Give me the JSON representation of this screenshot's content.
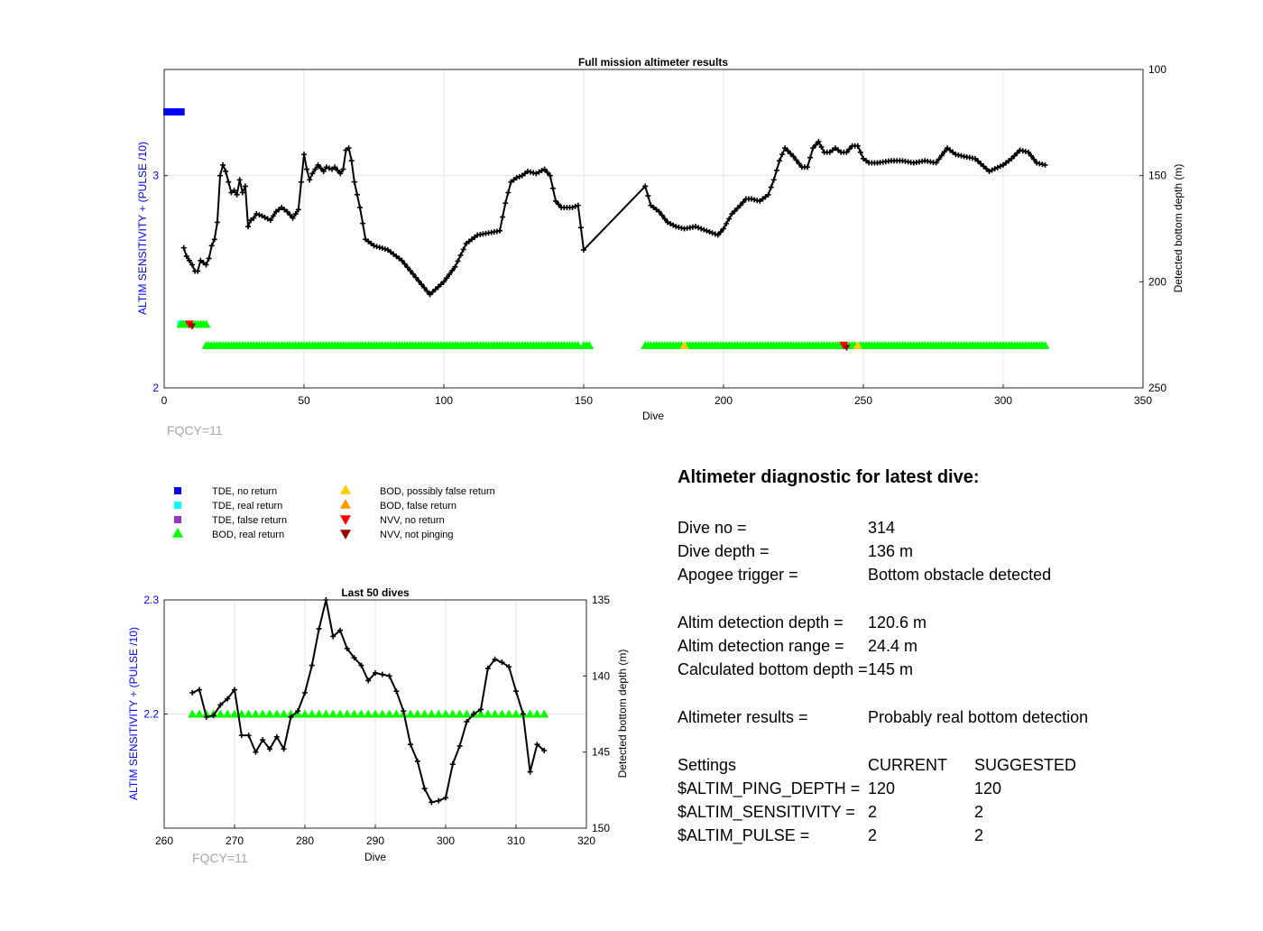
{
  "chart_data": [
    {
      "type": "scatter",
      "title": "Full mission altimeter results",
      "xlabel": "Dive",
      "ylabel_left": "ALTIM SENSITIVITY + (PULSE /10)",
      "ylabel_right": "Detected bottom depth (m)",
      "xlim": [
        0,
        350
      ],
      "ylim_left": [
        2,
        3.5
      ],
      "ylim_right_reversed": [
        100,
        250
      ],
      "x_ticks": [
        0,
        50,
        100,
        150,
        200,
        250,
        300,
        350
      ],
      "x_tick_labels": [
        "0",
        "50",
        "100",
        "150",
        "200",
        "250",
        "300",
        "350"
      ],
      "y_left_ticks": [
        2,
        3
      ],
      "y_left_tick_labels": [
        "2",
        "3"
      ],
      "y_right_ticks": [
        100,
        150,
        200,
        250
      ],
      "y_right_tick_labels": [
        "100",
        "150",
        "200",
        "250"
      ],
      "grid": true,
      "annotation": "FQCY=11",
      "tde_no_return": {
        "x_from": 0,
        "x_to": 7,
        "y_left": 3.3
      },
      "tde_real_return": {
        "x": [
          6,
          7
        ],
        "y_left": 2.3
      },
      "bod_real_return": {
        "y_left_early": 2.3,
        "x_early": [
          6,
          7,
          8,
          9,
          10,
          11,
          12,
          13,
          14,
          15
        ],
        "y_left": 2.2,
        "x_ranges": [
          [
            15,
            148
          ],
          [
            150,
            152
          ],
          [
            172,
            315
          ]
        ]
      },
      "bod_possibly_false_return": {
        "x": [
          186,
          248
        ],
        "y_left": 2.2
      },
      "nvv_no_return": {
        "x": [
          9,
          243
        ],
        "y_left": [
          2.3,
          2.2
        ]
      },
      "nvv_not_pinging": {
        "x": [
          10,
          244
        ],
        "y_left": [
          2.29,
          2.19
        ]
      },
      "bottom_depth_series": {
        "x": [
          7,
          8,
          10,
          11,
          12,
          13,
          14,
          15,
          16,
          17,
          18,
          19,
          20,
          21,
          22,
          23,
          24,
          25,
          26,
          27,
          28,
          29,
          30,
          31,
          32,
          33,
          35,
          38,
          40,
          42,
          44,
          46,
          48,
          50,
          51,
          52,
          53,
          55,
          57,
          58,
          60,
          61,
          63,
          64,
          65,
          66,
          67,
          68,
          70,
          72,
          75,
          80,
          85,
          90,
          95,
          100,
          104,
          108,
          112,
          116,
          120,
          122,
          124,
          126,
          128,
          130,
          133,
          136,
          138,
          140,
          142,
          144,
          146,
          148,
          150,
          172,
          174,
          177,
          180,
          183,
          186,
          190,
          194,
          198,
          200,
          203,
          206,
          208,
          210,
          213,
          216,
          218,
          220,
          222,
          225,
          228,
          230,
          232,
          234,
          236,
          238,
          240,
          242,
          244,
          246,
          248,
          250,
          252,
          255,
          260,
          264,
          268,
          272,
          276,
          280,
          283,
          286,
          290,
          295,
          300,
          303,
          306,
          309,
          312,
          315
        ],
        "depth": [
          184,
          188,
          192,
          195,
          195,
          190,
          191,
          192,
          189,
          183,
          180,
          172,
          150,
          145,
          148,
          153,
          158,
          157,
          159,
          152,
          158,
          155,
          174,
          171,
          170,
          168,
          169,
          171,
          167,
          165,
          167,
          170,
          166,
          140,
          147,
          152,
          149,
          145,
          148,
          146,
          147,
          146,
          149,
          147,
          138,
          137,
          143,
          153,
          165,
          180,
          183,
          185,
          190,
          198,
          206,
          200,
          193,
          182,
          178,
          177,
          176,
          163,
          153,
          151,
          150,
          148,
          149,
          147,
          150,
          162,
          165,
          165,
          165,
          164,
          185,
          155,
          164,
          167,
          172,
          174,
          175,
          174,
          176,
          178,
          175,
          168,
          164,
          161,
          161,
          162,
          159,
          152,
          143,
          137,
          141,
          146,
          146,
          137,
          134,
          139,
          139,
          137,
          139,
          139,
          136,
          136,
          142,
          144,
          144,
          143,
          143,
          144,
          143,
          144,
          137,
          140,
          141,
          142,
          148,
          145,
          142,
          138,
          139,
          144,
          145
        ]
      }
    },
    {
      "type": "scatter",
      "title": "Last 50 dives",
      "xlabel": "Dive",
      "ylabel_left": "ALTIM SENSITIVITY + (PULSE /10)",
      "ylabel_right": "Detected bottom depth (m)",
      "xlim": [
        260,
        320
      ],
      "ylim_left": [
        2.1,
        2.3
      ],
      "ylim_right_reversed": [
        135,
        150
      ],
      "x_ticks": [
        260,
        270,
        280,
        290,
        300,
        310,
        320
      ],
      "x_tick_labels": [
        "260",
        "270",
        "280",
        "290",
        "300",
        "310",
        "320"
      ],
      "y_left_ticks": [
        2.2,
        2.3
      ],
      "y_left_tick_labels": [
        "2.2",
        "2.3"
      ],
      "y_right_ticks": [
        135,
        140,
        145,
        150
      ],
      "y_right_tick_labels": [
        "135",
        "140",
        "145",
        "150"
      ],
      "grid": true,
      "annotation": "FQCY=11",
      "bod_real_return": {
        "x_from": 264,
        "x_to": 314,
        "y_left": 2.2
      },
      "bottom_depth_series": {
        "x": [
          264,
          265,
          266,
          267,
          268,
          269,
          270,
          271,
          272,
          273,
          274,
          275,
          276,
          277,
          278,
          279,
          280,
          281,
          282,
          283,
          284,
          285,
          286,
          287,
          288,
          289,
          290,
          291,
          292,
          293,
          294,
          295,
          296,
          297,
          298,
          299,
          300,
          301,
          302,
          303,
          304,
          305,
          306,
          307,
          308,
          309,
          310,
          311,
          312,
          313,
          314
        ],
        "depth": [
          141.1,
          140.9,
          142.7,
          142.6,
          141.9,
          141.5,
          140.9,
          143.9,
          143.9,
          145.0,
          144.2,
          144.8,
          144.0,
          144.8,
          142.7,
          142.3,
          141.1,
          139.3,
          136.9,
          135.0,
          137.4,
          137.0,
          138.2,
          138.8,
          139.3,
          140.3,
          139.8,
          139.9,
          140.0,
          141.0,
          142.3,
          144.5,
          145.6,
          147.4,
          148.3,
          148.2,
          148.0,
          145.8,
          144.6,
          143.0,
          142.5,
          142.2,
          139.5,
          138.9,
          139.1,
          139.4,
          141.0,
          142.5,
          146.3,
          144.5,
          144.9
        ]
      }
    }
  ],
  "legend": {
    "entries": [
      {
        "label": "TDE, no return",
        "marker": "square",
        "color": "#0000ff"
      },
      {
        "label": "TDE, real return",
        "marker": "square",
        "color": "#00ffff"
      },
      {
        "label": "TDE, false return",
        "marker": "square",
        "color": "#9933cc"
      },
      {
        "label": "BOD, real return",
        "marker": "triangle-up",
        "color": "#00ff00"
      },
      {
        "label": "BOD, possibly false return",
        "marker": "triangle-up",
        "color": "#ffcc00"
      },
      {
        "label": "BOD, false return",
        "marker": "triangle-up",
        "color": "#ff9900"
      },
      {
        "label": "NVV, no return",
        "marker": "triangle-down",
        "color": "#ff0000"
      },
      {
        "label": "NVV, not pinging",
        "marker": "triangle-down",
        "color": "#990000"
      }
    ]
  },
  "diagnostic": {
    "title": "Altimeter diagnostic for latest dive:",
    "dive_no": {
      "label": "Dive no =",
      "value": "314"
    },
    "dive_depth": {
      "label": "Dive depth =",
      "value": "136 m"
    },
    "apogee_trigger": {
      "label": "Apogee trigger =",
      "value": "Bottom obstacle detected"
    },
    "altim_detection_depth": {
      "label": "Altim detection depth =",
      "value": "120.6 m"
    },
    "altim_detection_range": {
      "label": "Altim detection range =",
      "value": "24.4 m"
    },
    "calculated_bottom_depth": {
      "label": "Calculated bottom depth =",
      "value": "145 m"
    },
    "altimeter_results": {
      "label": "Altimeter results =",
      "value": "Probably real bottom detection"
    },
    "settings": {
      "header": {
        "label": "Settings",
        "current": "CURRENT",
        "suggested": "SUGGESTED"
      },
      "rows": [
        {
          "label": "$ALTIM_PING_DEPTH =",
          "current": "120",
          "suggested": "120"
        },
        {
          "label": "$ALTIM_SENSITIVITY =",
          "current": "2",
          "suggested": "2"
        },
        {
          "label": "$ALTIM_PULSE =",
          "current": "2",
          "suggested": "2"
        }
      ]
    }
  },
  "colors": {
    "left_axis_label": "#0000ff",
    "axis": "#262626",
    "grid": "#e6e6e6",
    "series": "#000000",
    "annotation": "#a6a6a6"
  }
}
